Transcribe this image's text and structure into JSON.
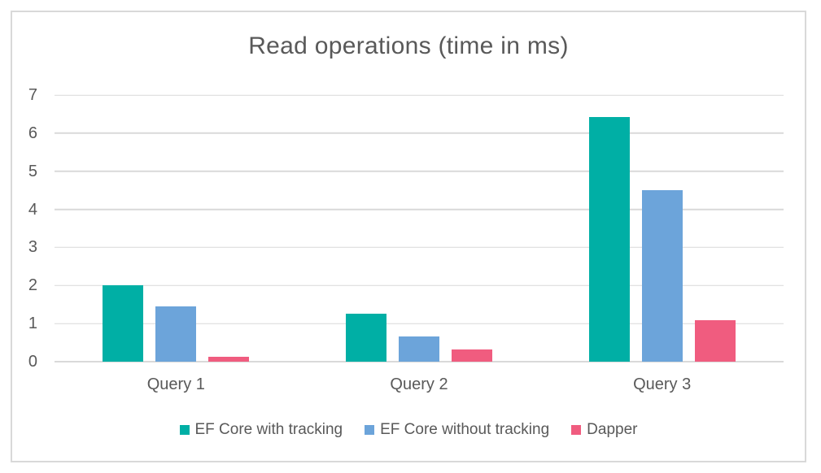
{
  "chart_data": {
    "type": "bar",
    "title": "Read operations (time in ms)",
    "categories": [
      "Query 1",
      "Query 2",
      "Query 3"
    ],
    "series": [
      {
        "name": "EF Core with tracking",
        "color": "#00AFA5",
        "values": [
          2.0,
          1.27,
          6.43
        ]
      },
      {
        "name": "EF Core without tracking",
        "color": "#6CA4DA",
        "values": [
          1.45,
          0.66,
          4.51
        ]
      },
      {
        "name": "Dapper",
        "color": "#F05C7F",
        "values": [
          0.12,
          0.31,
          1.08
        ]
      }
    ],
    "xlabel": "",
    "ylabel": "",
    "ylim": [
      0,
      7
    ],
    "yticks": [
      0,
      1,
      2,
      3,
      4,
      5,
      6,
      7
    ],
    "grid": true,
    "legend_position": "bottom",
    "colors": {
      "text": "#595959",
      "gridline": "#D9D9D9",
      "axis_line": "#D9D9D9",
      "frame_border": "#D9D9D9",
      "background": "#FFFFFF"
    }
  }
}
